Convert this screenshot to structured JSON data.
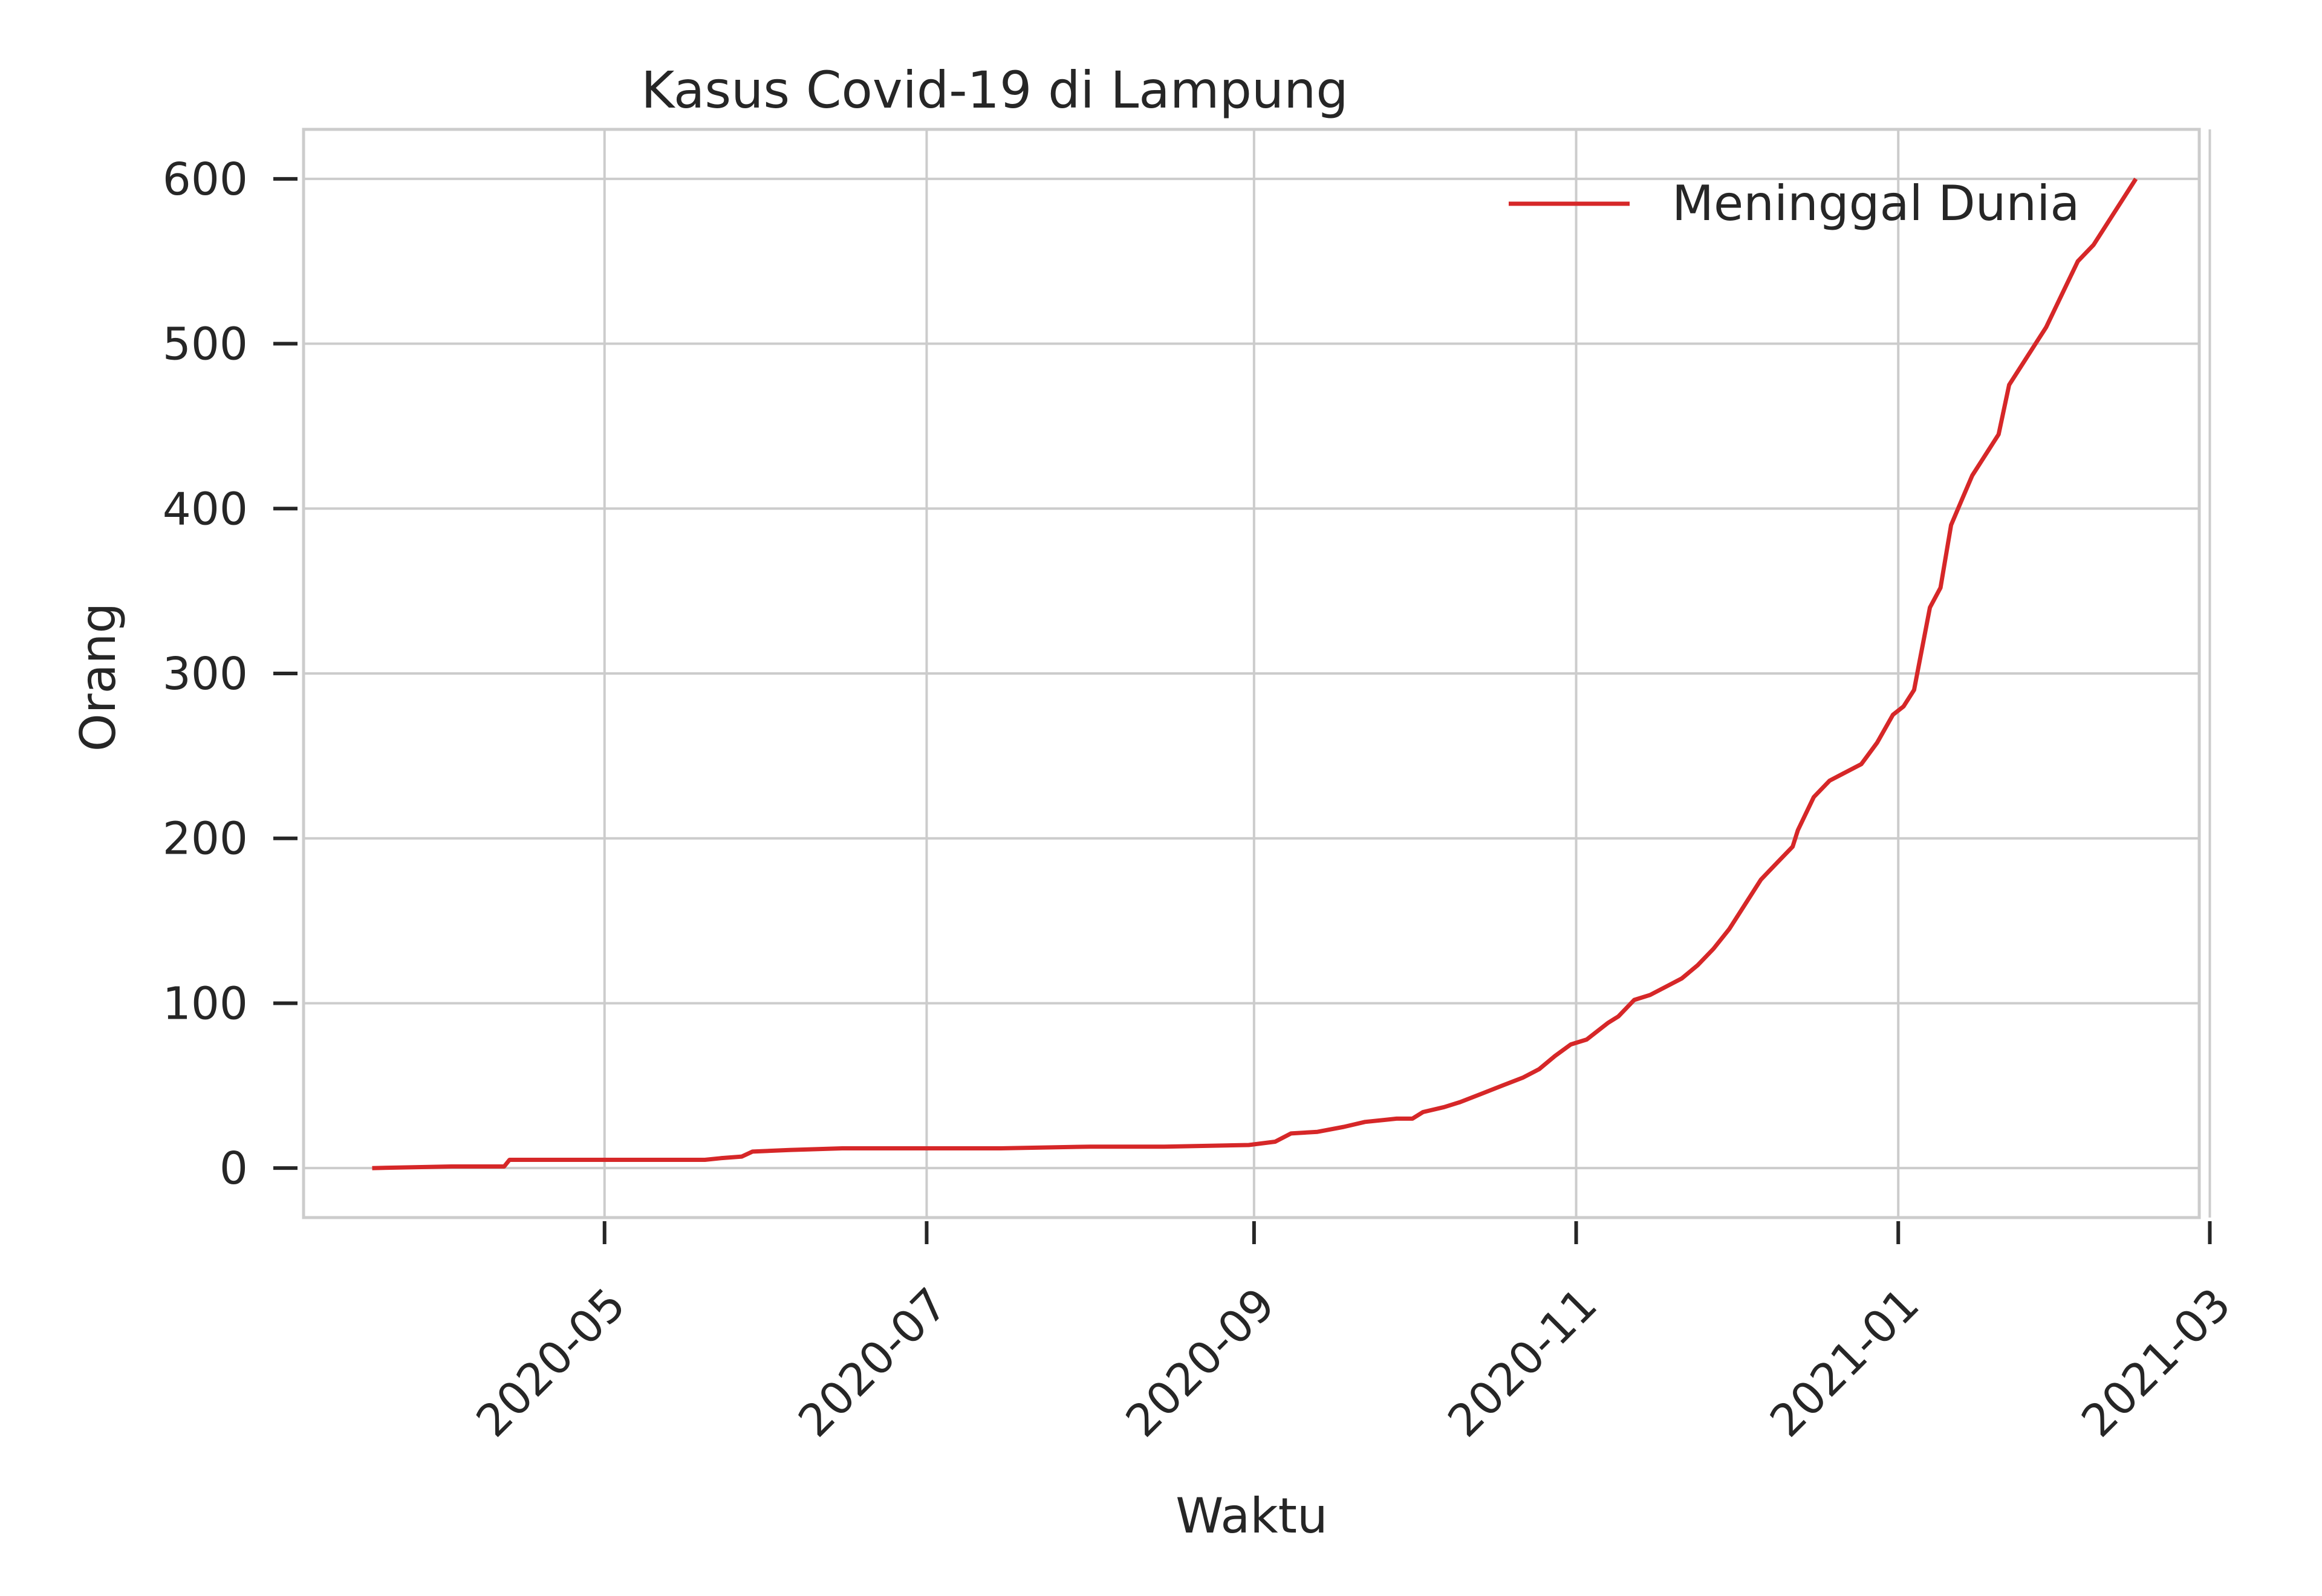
{
  "chart_data": {
    "type": "line",
    "title": "Kasus Covid-19 di Lampung",
    "xlabel": "Waktu",
    "ylabel": "Orang",
    "xlim": [
      "2020-03-05",
      "2021-02-27"
    ],
    "ylim": [
      -30,
      630
    ],
    "grid": true,
    "legend_position": "top-right",
    "x_ticks": [
      "2020-05",
      "2020-07",
      "2020-09",
      "2020-11",
      "2021-01",
      "2021-03"
    ],
    "y_ticks": [
      0,
      100,
      200,
      300,
      400,
      500,
      600
    ],
    "series": [
      {
        "name": "Meninggal Dunia",
        "color": "#d62728",
        "x": [
          "2020-03-18",
          "2020-04-02",
          "2020-04-12",
          "2020-04-13",
          "2020-05-20",
          "2020-05-23",
          "2020-05-27",
          "2020-05-29",
          "2020-06-05",
          "2020-06-15",
          "2020-07-15",
          "2020-08-01",
          "2020-08-15",
          "2020-08-31",
          "2020-09-05",
          "2020-09-08",
          "2020-09-13",
          "2020-09-18",
          "2020-09-22",
          "2020-09-28",
          "2020-10-01",
          "2020-10-03",
          "2020-10-07",
          "2020-10-10",
          "2020-10-14",
          "2020-10-18",
          "2020-10-22",
          "2020-10-25",
          "2020-10-28",
          "2020-10-31",
          "2020-11-03",
          "2020-11-07",
          "2020-11-09",
          "2020-11-12",
          "2020-11-15",
          "2020-11-18",
          "2020-11-21",
          "2020-11-24",
          "2020-11-27",
          "2020-11-30",
          "2020-12-03",
          "2020-12-06",
          "2020-12-09",
          "2020-12-12",
          "2020-12-13",
          "2020-12-16",
          "2020-12-19",
          "2020-12-22",
          "2020-12-25",
          "2020-12-28",
          "2020-12-31",
          "2021-01-02",
          "2021-01-04",
          "2021-01-07",
          "2021-01-09",
          "2021-01-11",
          "2021-01-13",
          "2021-01-15",
          "2021-01-18",
          "2021-01-20",
          "2021-01-22",
          "2021-01-25",
          "2021-01-27",
          "2021-01-29",
          "2021-02-01",
          "2021-02-04",
          "2021-02-07",
          "2021-02-10",
          "2021-02-13",
          "2021-02-15"
        ],
        "y": [
          0,
          1,
          1,
          5,
          5,
          6,
          7,
          10,
          11,
          12,
          12,
          13,
          13,
          14,
          16,
          21,
          22,
          25,
          28,
          30,
          30,
          34,
          37,
          40,
          45,
          50,
          55,
          60,
          68,
          75,
          78,
          88,
          92,
          102,
          105,
          110,
          115,
          123,
          133,
          145,
          160,
          175,
          185,
          195,
          205,
          225,
          235,
          240,
          245,
          258,
          275,
          280,
          290,
          340,
          352,
          390,
          405,
          420,
          435,
          445,
          475,
          490,
          500,
          510,
          530,
          550,
          560,
          575,
          590,
          600
        ]
      }
    ]
  }
}
